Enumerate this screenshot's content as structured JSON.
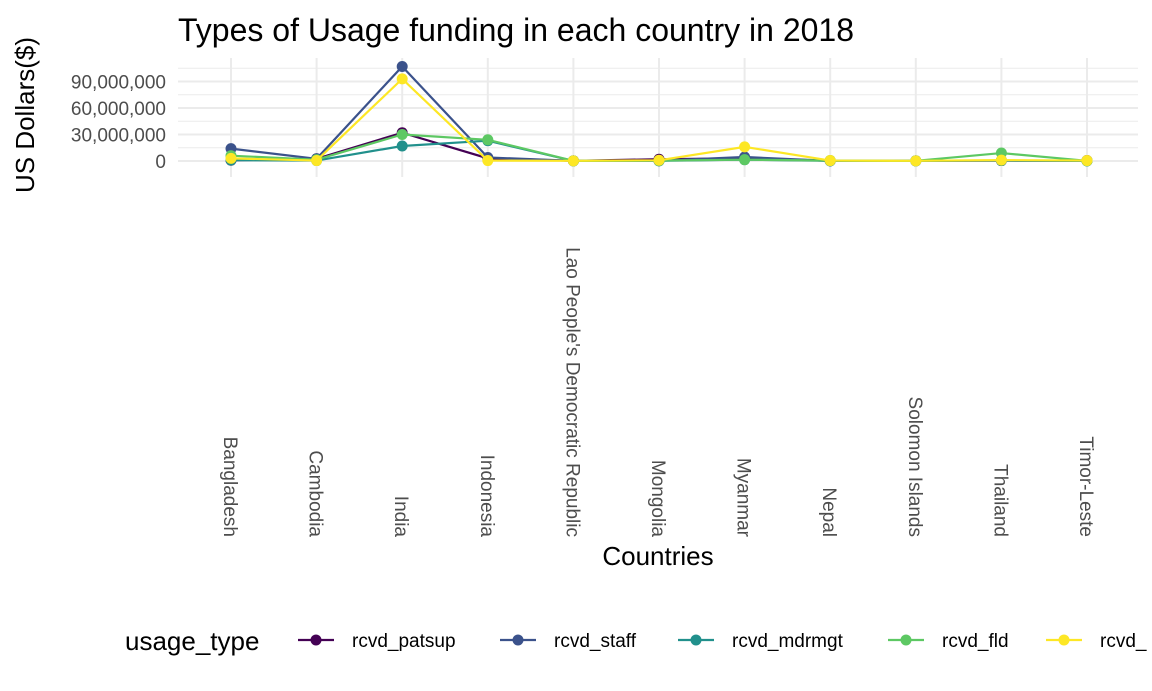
{
  "chart_data": {
    "type": "line",
    "title": "Types of Usage funding in each country in 2018",
    "xlabel": "Countries",
    "ylabel": "US Dollars($)",
    "categories": [
      "Bangladesh",
      "Cambodia",
      "India",
      "Indonesia",
      "Lao People's Democratic Republic",
      "Mongolia",
      "Myanmar",
      "Nepal",
      "Solomon Islands",
      "Thailand",
      "Timor-Leste"
    ],
    "ylim": [
      0,
      108000000
    ],
    "yticks": [
      0,
      30000000,
      60000000,
      90000000
    ],
    "ytick_labels": [
      "0",
      "30,000,000",
      "60,000,000",
      "90,000,000"
    ],
    "grid": true,
    "legend_title": "usage_type",
    "legend_position": "bottom",
    "series": [
      {
        "name": "rcvd_patsup",
        "color": "#440154",
        "values": [
          800000,
          2500000,
          32000000,
          3000000,
          200000,
          2000000,
          3000000,
          300000,
          200000,
          500000,
          500000
        ]
      },
      {
        "name": "rcvd_staff",
        "color": "#3B528B",
        "values": [
          14000000,
          2500000,
          107000000,
          4000000,
          200000,
          300000,
          4500000,
          200000,
          200000,
          500000,
          200000
        ]
      },
      {
        "name": "rcvd_mdrmgt",
        "color": "#21908C",
        "values": [
          1000000,
          500000,
          17000000,
          23000000,
          100000,
          200000,
          1500000,
          200000,
          100000,
          500000,
          100000
        ]
      },
      {
        "name": "rcvd_fld",
        "color": "#5DC863",
        "values": [
          6000000,
          1500000,
          30000000,
          24000000,
          200000,
          500000,
          1500000,
          500000,
          200000,
          9000000,
          200000
        ]
      },
      {
        "name": "rcvd_",
        "color": "#FDE725",
        "values": [
          3000000,
          500000,
          93000000,
          500000,
          200000,
          800000,
          16000000,
          500000,
          200000,
          1000000,
          500000
        ]
      }
    ]
  }
}
